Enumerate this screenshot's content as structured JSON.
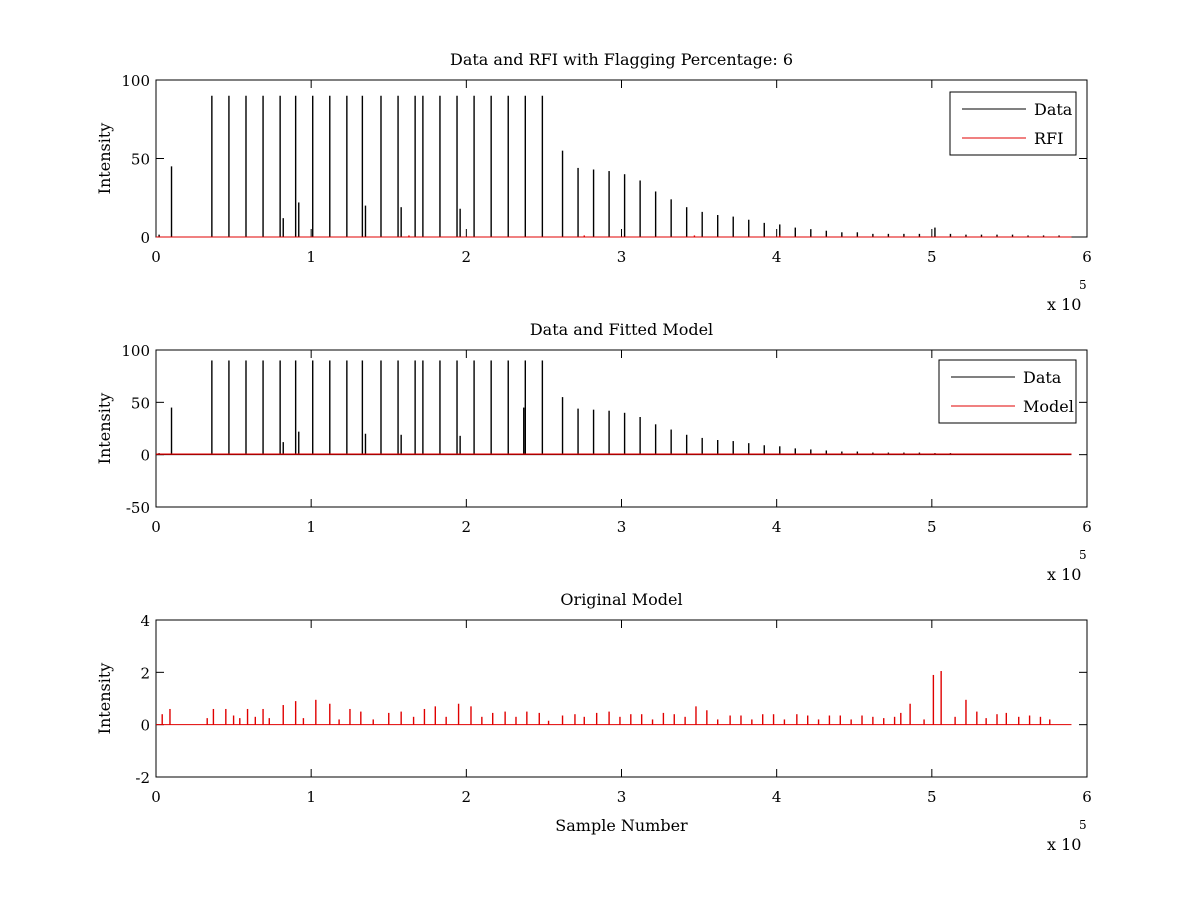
{
  "chart_data": [
    {
      "type": "line",
      "title": "Data and RFI with Flagging Percentage: 6",
      "xlabel": "",
      "ylabel": "Intensity",
      "xlim": [
        0,
        6
      ],
      "ylim": [
        0,
        100
      ],
      "x_multiplier_label": "x 10",
      "x_multiplier_exponent": "5",
      "xticks": [
        "0",
        "1",
        "2",
        "3",
        "4",
        "5",
        "6"
      ],
      "yticks": [
        "0",
        "50",
        "100"
      ],
      "legend": {
        "position": "top-right",
        "entries": [
          "Data",
          "RFI"
        ]
      },
      "grid": false,
      "series": [
        {
          "name": "Data",
          "color": "#000000",
          "style": "spikes",
          "x": [
            0.02,
            0.1,
            0.36,
            0.47,
            0.58,
            0.69,
            0.8,
            0.82,
            0.9,
            0.92,
            1.01,
            1.12,
            1.23,
            1.33,
            1.35,
            1.45,
            1.56,
            1.58,
            1.67,
            1.72,
            1.83,
            1.94,
            1.96,
            2.05,
            2.16,
            2.27,
            2.38,
            2.49,
            2.62,
            2.72,
            2.82,
            2.92,
            3.02,
            3.12,
            3.22,
            3.32,
            3.42,
            3.52,
            3.62,
            3.72,
            3.82,
            3.92,
            4.02,
            4.12,
            4.22,
            4.32,
            4.42,
            4.52,
            4.62,
            4.72,
            4.82,
            4.92,
            5.02,
            5.12,
            5.22,
            5.32,
            5.42,
            5.52,
            5.62,
            5.72,
            5.82
          ],
          "y": [
            1.5,
            45,
            90,
            90,
            90,
            90,
            90,
            12,
            90,
            22,
            90,
            90,
            90,
            90,
            20,
            90,
            90,
            19,
            90,
            90,
            90,
            90,
            18,
            90,
            90,
            90,
            90,
            90,
            55,
            44,
            43,
            42,
            40,
            36,
            29,
            24,
            19,
            16,
            14,
            13,
            11,
            9,
            8,
            6,
            5,
            4,
            3,
            3,
            2,
            2,
            2,
            2,
            6,
            2,
            1.5,
            1.5,
            1.5,
            1.5,
            1,
            1,
            1
          ]
        },
        {
          "name": "RFI",
          "color": "#e00000",
          "style": "spikes",
          "x": [
            1.63,
            2.76,
            3.47,
            4.02
          ],
          "y": [
            1,
            1,
            1,
            1
          ]
        }
      ]
    },
    {
      "type": "line",
      "title": "Data and Fitted Model",
      "xlabel": "",
      "ylabel": "Intensity",
      "xlim": [
        0,
        6
      ],
      "ylim": [
        -50,
        100
      ],
      "x_multiplier_label": "x 10",
      "x_multiplier_exponent": "5",
      "xticks": [
        "0",
        "1",
        "2",
        "3",
        "4",
        "5",
        "6"
      ],
      "yticks": [
        "-50",
        "0",
        "50",
        "100"
      ],
      "legend": {
        "position": "top-right",
        "entries": [
          "Data",
          "Model"
        ]
      },
      "grid": false,
      "series": [
        {
          "name": "Data",
          "color": "#000000",
          "style": "spikes",
          "x": [
            0.02,
            0.1,
            0.36,
            0.47,
            0.58,
            0.69,
            0.8,
            0.82,
            0.9,
            0.92,
            1.01,
            1.12,
            1.23,
            1.33,
            1.35,
            1.45,
            1.56,
            1.58,
            1.67,
            1.72,
            1.83,
            1.94,
            1.96,
            2.05,
            2.16,
            2.27,
            2.37,
            2.38,
            2.49,
            2.62,
            2.72,
            2.82,
            2.92,
            3.02,
            3.12,
            3.22,
            3.32,
            3.42,
            3.52,
            3.62,
            3.72,
            3.82,
            3.92,
            4.02,
            4.12,
            4.22,
            4.32,
            4.42,
            4.52,
            4.62,
            4.72,
            4.82,
            4.92,
            5.02,
            5.12,
            5.22
          ],
          "y": [
            1.5,
            45,
            90,
            90,
            90,
            90,
            90,
            12,
            90,
            22,
            90,
            90,
            90,
            90,
            20,
            90,
            90,
            19,
            90,
            90,
            90,
            90,
            18,
            90,
            90,
            90,
            45,
            90,
            90,
            55,
            44,
            43,
            42,
            40,
            36,
            29,
            24,
            19,
            16,
            14,
            13,
            11,
            9,
            8,
            6,
            5,
            4,
            3,
            3,
            2,
            2,
            2,
            2,
            1.5,
            1.5,
            1
          ]
        },
        {
          "name": "Model",
          "color": "#e00000",
          "style": "line",
          "x": [
            0,
            5.9
          ],
          "y": [
            0.5,
            0.5
          ]
        }
      ]
    },
    {
      "type": "line",
      "title": "Original Model",
      "xlabel": "Sample Number",
      "ylabel": "Intensity",
      "xlim": [
        0,
        6
      ],
      "ylim": [
        -2,
        4
      ],
      "x_multiplier_label": "x 10",
      "x_multiplier_exponent": "5",
      "xticks": [
        "0",
        "1",
        "2",
        "3",
        "4",
        "5",
        "6"
      ],
      "yticks": [
        "-2",
        "0",
        "2",
        "4"
      ],
      "grid": false,
      "series": [
        {
          "name": "",
          "color": "#e00000",
          "style": "spikes",
          "x": [
            0.04,
            0.09,
            0.33,
            0.37,
            0.45,
            0.5,
            0.54,
            0.59,
            0.64,
            0.69,
            0.73,
            0.82,
            0.9,
            0.95,
            1.03,
            1.12,
            1.18,
            1.25,
            1.32,
            1.4,
            1.5,
            1.58,
            1.66,
            1.73,
            1.8,
            1.87,
            1.95,
            2.03,
            2.1,
            2.17,
            2.25,
            2.32,
            2.39,
            2.47,
            2.53,
            2.62,
            2.7,
            2.76,
            2.84,
            2.92,
            2.99,
            3.06,
            3.13,
            3.2,
            3.27,
            3.34,
            3.41,
            3.48,
            3.55,
            3.62,
            3.7,
            3.77,
            3.84,
            3.91,
            3.98,
            4.05,
            4.13,
            4.2,
            4.27,
            4.34,
            4.41,
            4.48,
            4.55,
            4.62,
            4.69,
            4.76,
            4.8,
            4.86,
            4.95,
            5.01,
            5.06,
            5.15,
            5.22,
            5.29,
            5.35,
            5.42,
            5.48,
            5.56,
            5.63,
            5.7,
            5.76
          ],
          "y": [
            0.4,
            0.6,
            0.25,
            0.6,
            0.6,
            0.35,
            0.25,
            0.6,
            0.3,
            0.6,
            0.25,
            0.75,
            0.9,
            0.25,
            0.95,
            0.8,
            0.2,
            0.6,
            0.5,
            0.2,
            0.45,
            0.5,
            0.3,
            0.6,
            0.7,
            0.3,
            0.8,
            0.7,
            0.3,
            0.45,
            0.5,
            0.3,
            0.5,
            0.45,
            0.15,
            0.35,
            0.4,
            0.3,
            0.45,
            0.5,
            0.3,
            0.4,
            0.4,
            0.2,
            0.45,
            0.4,
            0.3,
            0.7,
            0.55,
            0.2,
            0.35,
            0.35,
            0.2,
            0.4,
            0.4,
            0.2,
            0.4,
            0.35,
            0.2,
            0.35,
            0.35,
            0.2,
            0.35,
            0.3,
            0.25,
            0.3,
            0.45,
            0.8,
            0.2,
            1.9,
            2.05,
            0.3,
            0.95,
            0.5,
            0.25,
            0.4,
            0.45,
            0.3,
            0.35,
            0.3,
            0.2
          ]
        }
      ]
    }
  ]
}
